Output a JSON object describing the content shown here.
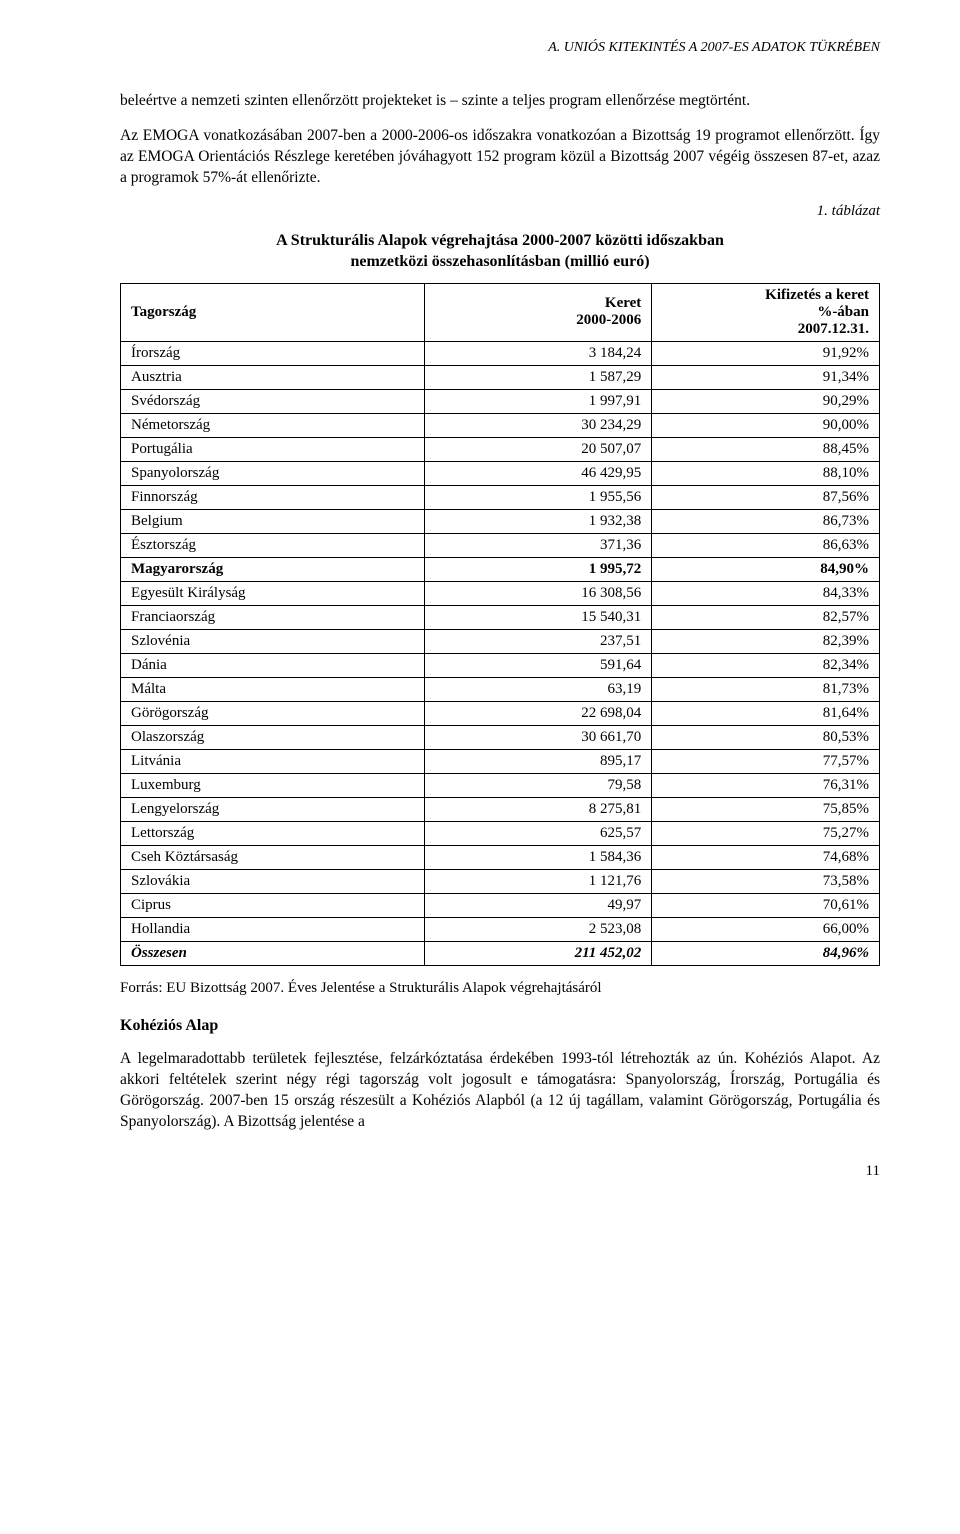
{
  "header": "A. UNIÓS KITEKINTÉS A 2007-ES ADATOK TÜKRÉBEN",
  "paragraphs": {
    "p1": "beleértve a nemzeti szinten ellenőrzött projekteket is – szinte a teljes program ellenőrzése megtörtént.",
    "p2": "Az EMOGA vonatkozásában 2007-ben a 2000-2006-os időszakra vonatkozóan a Bizottság 19 programot ellenőrzött. Így az EMOGA Orientációs Részlege keretében jóváhagyott 152 program közül a Bizottság 2007 végéig összesen 87-et, azaz a programok 57%-át ellenőrizte.",
    "p3": "A legelmaradottabb területek fejlesztése, felzárkóztatása érdekében 1993-tól létrehozták az ún. Kohéziós Alapot. Az akkori feltételek szerint négy régi tagország volt jogosult e támogatásra: Spanyolország, Írország, Portugália és Görögország. 2007-ben 15 ország részesült a Kohéziós Alapból (a 12 új tagállam, valamint Görögország, Portugália és Spanyolország). A Bizottság jelentése a"
  },
  "table_label": "1. táblázat",
  "table_title_line1": "A Strukturális Alapok végrehajtása 2000-2007 közötti időszakban",
  "table_title_line2": "nemzetközi összehasonlításban (millió euró)",
  "table": {
    "headers": {
      "h1": "Tagország",
      "h2_line1": "Keret",
      "h2_line2": "2000-2006",
      "h3_line1": "Kifizetés a keret",
      "h3_line2": "%-ában",
      "h3_line3": "2007.12.31."
    },
    "rows": [
      {
        "country": "Írország",
        "keret": "3 184,24",
        "pct": "91,92%",
        "bold": false
      },
      {
        "country": "Ausztria",
        "keret": "1 587,29",
        "pct": "91,34%",
        "bold": false
      },
      {
        "country": "Svédország",
        "keret": "1 997,91",
        "pct": "90,29%",
        "bold": false
      },
      {
        "country": "Németország",
        "keret": "30 234,29",
        "pct": "90,00%",
        "bold": false
      },
      {
        "country": "Portugália",
        "keret": "20 507,07",
        "pct": "88,45%",
        "bold": false
      },
      {
        "country": "Spanyolország",
        "keret": "46 429,95",
        "pct": "88,10%",
        "bold": false
      },
      {
        "country": "Finnország",
        "keret": "1 955,56",
        "pct": "87,56%",
        "bold": false
      },
      {
        "country": "Belgium",
        "keret": "1 932,38",
        "pct": "86,73%",
        "bold": false
      },
      {
        "country": "Észtország",
        "keret": "371,36",
        "pct": "86,63%",
        "bold": false
      },
      {
        "country": "Magyarország",
        "keret": "1 995,72",
        "pct": "84,90%",
        "bold": true
      },
      {
        "country": "Egyesült Királyság",
        "keret": "16 308,56",
        "pct": "84,33%",
        "bold": false
      },
      {
        "country": "Franciaország",
        "keret": "15 540,31",
        "pct": "82,57%",
        "bold": false
      },
      {
        "country": "Szlovénia",
        "keret": "237,51",
        "pct": "82,39%",
        "bold": false
      },
      {
        "country": "Dánia",
        "keret": "591,64",
        "pct": "82,34%",
        "bold": false
      },
      {
        "country": "Málta",
        "keret": "63,19",
        "pct": "81,73%",
        "bold": false
      },
      {
        "country": "Görögország",
        "keret": "22 698,04",
        "pct": "81,64%",
        "bold": false
      },
      {
        "country": "Olaszország",
        "keret": "30 661,70",
        "pct": "80,53%",
        "bold": false
      },
      {
        "country": "Litvánia",
        "keret": "895,17",
        "pct": "77,57%",
        "bold": false
      },
      {
        "country": "Luxemburg",
        "keret": "79,58",
        "pct": "76,31%",
        "bold": false
      },
      {
        "country": "Lengyelország",
        "keret": "8 275,81",
        "pct": "75,85%",
        "bold": false
      },
      {
        "country": "Lettország",
        "keret": "625,57",
        "pct": "75,27%",
        "bold": false
      },
      {
        "country": "Cseh Köztársaság",
        "keret": "1 584,36",
        "pct": "74,68%",
        "bold": false
      },
      {
        "country": "Szlovákia",
        "keret": "1 121,76",
        "pct": "73,58%",
        "bold": false
      },
      {
        "country": "Ciprus",
        "keret": "49,97",
        "pct": "70,61%",
        "bold": false
      },
      {
        "country": "Hollandia",
        "keret": "2 523,08",
        "pct": "66,00%",
        "bold": false
      }
    ],
    "total": {
      "country": "Összesen",
      "keret": "211 452,02",
      "pct": "84,96%"
    }
  },
  "source": "Forrás: EU Bizottság 2007. Éves Jelentése a Strukturális Alapok végrehajtásáról",
  "section_heading": "Kohéziós Alap",
  "page_number": "11"
}
